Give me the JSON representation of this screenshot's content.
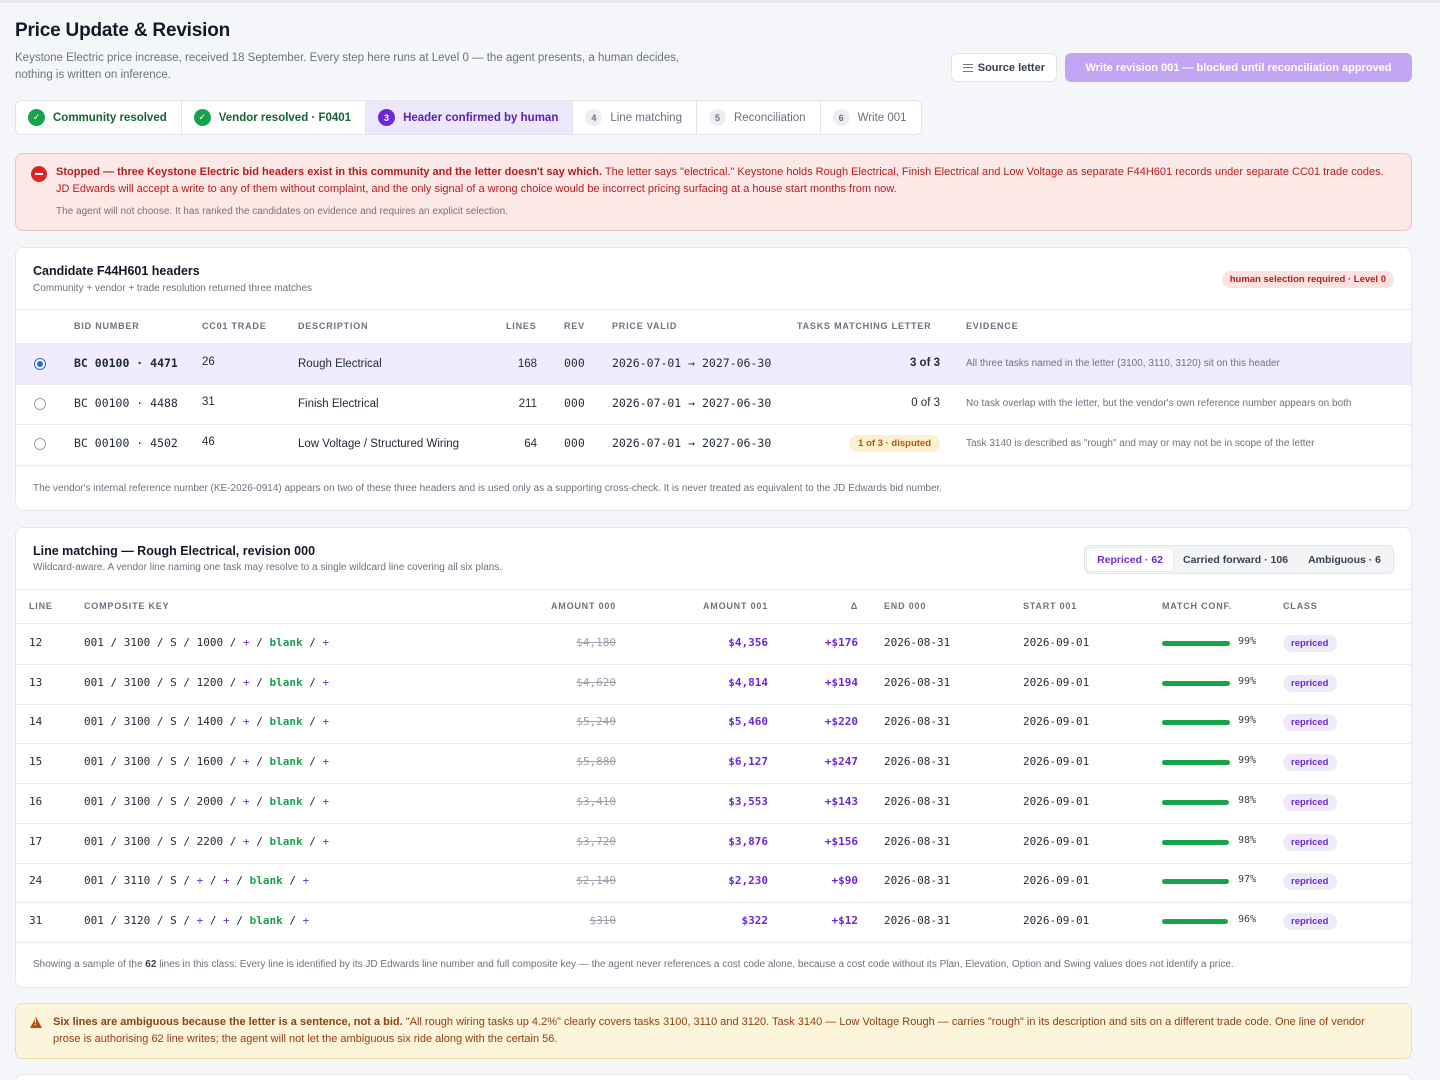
{
  "header": {
    "title": "Price Update & Revision",
    "subtitle": "Keystone Electric price increase, received 18 September. Every step here runs at Level 0 — the agent presents, a human decides, nothing is written on inference.",
    "source_button": "Source letter",
    "write_button": "Write revision 001 — blocked until reconciliation approved"
  },
  "steps": [
    {
      "num": "✓",
      "label": "Community resolved",
      "state": "done"
    },
    {
      "num": "✓",
      "label": "Vendor resolved · F0401",
      "state": "done"
    },
    {
      "num": "3",
      "label": "Header confirmed by human",
      "state": "active"
    },
    {
      "num": "4",
      "label": "Line matching",
      "state": "todo"
    },
    {
      "num": "5",
      "label": "Reconciliation",
      "state": "todo"
    },
    {
      "num": "6",
      "label": "Write 001",
      "state": "todo"
    }
  ],
  "alert": {
    "bold": "Stopped — three Keystone Electric bid headers exist in this community and the letter doesn't say which.",
    "text": " The letter says \"electrical.\" Keystone holds Rough Electrical, Finish Electrical and Low Voltage as separate F44H601 records under separate CC01 trade codes. JD Edwards will accept a write to any of them without complaint, and the only signal of a wrong choice would be incorrect pricing surfacing at a house start months from now.",
    "note": "The agent will not choose. It has ranked the candidates on evidence and requires an explicit selection."
  },
  "candidates": {
    "title": "Candidate F44H601 headers",
    "subtitle": "Community + vendor + trade resolution returned three matches",
    "badge": "human selection required · Level 0",
    "columns": [
      "Bid number",
      "CC01 trade",
      "Description",
      "Lines",
      "Rev",
      "Price valid",
      "Tasks matching letter",
      "Evidence"
    ],
    "rows": [
      {
        "bid": "BC 00100 · 4471",
        "trade": "26",
        "desc": "Rough Electrical",
        "lines": "168",
        "rev": "000",
        "valid": "2026-07-01 → 2027-06-30",
        "tasks": "3 of 3",
        "evidence": "All three tasks named in the letter (3100, 3110, 3120) sit on this header",
        "selected": true
      },
      {
        "bid": "BC 00100 · 4488",
        "trade": "31",
        "desc": "Finish Electrical",
        "lines": "211",
        "rev": "000",
        "valid": "2026-07-01 → 2027-06-30",
        "tasks": "0 of 3",
        "evidence": "No task overlap with the letter, but the vendor's own reference number appears on both",
        "selected": false
      },
      {
        "bid": "BC 00100 · 4502",
        "trade": "46",
        "desc": "Low Voltage / Structured Wiring",
        "lines": "64",
        "rev": "000",
        "valid": "2026-07-01 → 2027-06-30",
        "tasks": "1 of 3 · disputed",
        "evidence": "Task 3140 is described as \"rough\" and may or may not be in scope of the letter",
        "selected": false
      }
    ],
    "footnote": "The vendor's internal reference number (KE-2026-0914) appears on two of these three headers and is used only as a supporting cross-check. It is never treated as equivalent to the JD Edwards bid number."
  },
  "matching": {
    "title": "Line matching — Rough Electrical, revision 000",
    "subtitle": "Wildcard-aware. A vendor line naming one task may resolve to a single wildcard line covering all six plans.",
    "tabs": [
      "Repriced · 62",
      "Carried forward · 106",
      "Ambiguous · 6"
    ],
    "columns": [
      "Line",
      "Composite key",
      "Amount 000",
      "Amount 001",
      "Δ",
      "End 000",
      "Start 001",
      "Match conf.",
      "Class"
    ],
    "rows": [
      {
        "line": "12",
        "key": [
          "001",
          "3100",
          "S",
          "1000",
          "+",
          "blank",
          "+"
        ],
        "a0": "$4,180",
        "a1": "$4,356",
        "d": "+$176",
        "end": "2026-08-31",
        "start": "2026-09-01",
        "conf": 0.99,
        "conf_label": "99%",
        "cls": "repriced"
      },
      {
        "line": "13",
        "key": [
          "001",
          "3100",
          "S",
          "1200",
          "+",
          "blank",
          "+"
        ],
        "a0": "$4,620",
        "a1": "$4,814",
        "d": "+$194",
        "end": "2026-08-31",
        "start": "2026-09-01",
        "conf": 0.99,
        "conf_label": "99%",
        "cls": "repriced"
      },
      {
        "line": "14",
        "key": [
          "001",
          "3100",
          "S",
          "1400",
          "+",
          "blank",
          "+"
        ],
        "a0": "$5,240",
        "a1": "$5,460",
        "d": "+$220",
        "end": "2026-08-31",
        "start": "2026-09-01",
        "conf": 0.99,
        "conf_label": "99%",
        "cls": "repriced"
      },
      {
        "line": "15",
        "key": [
          "001",
          "3100",
          "S",
          "1600",
          "+",
          "blank",
          "+"
        ],
        "a0": "$5,880",
        "a1": "$6,127",
        "d": "+$247",
        "end": "2026-08-31",
        "start": "2026-09-01",
        "conf": 0.99,
        "conf_label": "99%",
        "cls": "repriced"
      },
      {
        "line": "16",
        "key": [
          "001",
          "3100",
          "S",
          "2000",
          "+",
          "blank",
          "+"
        ],
        "a0": "$3,410",
        "a1": "$3,553",
        "d": "+$143",
        "end": "2026-08-31",
        "start": "2026-09-01",
        "conf": 0.98,
        "conf_label": "98%",
        "cls": "repriced"
      },
      {
        "line": "17",
        "key": [
          "001",
          "3100",
          "S",
          "2200",
          "+",
          "blank",
          "+"
        ],
        "a0": "$3,720",
        "a1": "$3,876",
        "d": "+$156",
        "end": "2026-08-31",
        "start": "2026-09-01",
        "conf": 0.98,
        "conf_label": "98%",
        "cls": "repriced"
      },
      {
        "line": "24",
        "key": [
          "001",
          "3110",
          "S",
          "+",
          "+",
          "blank",
          "+"
        ],
        "a0": "$2,140",
        "a1": "$2,230",
        "d": "+$90",
        "end": "2026-08-31",
        "start": "2026-09-01",
        "conf": 0.97,
        "conf_label": "97%",
        "cls": "repriced"
      },
      {
        "line": "31",
        "key": [
          "001",
          "3120",
          "S",
          "+",
          "+",
          "blank",
          "+"
        ],
        "a0": "$310",
        "a1": "$322",
        "d": "+$12",
        "end": "2026-08-31",
        "start": "2026-09-01",
        "conf": 0.96,
        "conf_label": "96%",
        "cls": "repriced"
      }
    ],
    "footnote_pre": "Showing a sample of the ",
    "footnote_count": "62",
    "footnote_post": " lines in this class. Every line is identified by its JD Edwards line number and full composite key — the agent never references a cost code alone, because a cost code without its Plan, Elevation, Option and Swing values does not identify a price."
  },
  "warning": {
    "bold": "Six lines are ambiguous because the letter is a sentence, not a bid.",
    "text": " \"All rough wiring tasks up 4.2%\" clearly covers tasks 3100, 3110 and 3120. Task 3140 — Low Voltage Rough — carries \"rough\" in its description and sits on a different trade code. One line of vendor prose is authorising 62 line writes; the agent will not let the ambiguous six ride along with the certain 56."
  }
}
